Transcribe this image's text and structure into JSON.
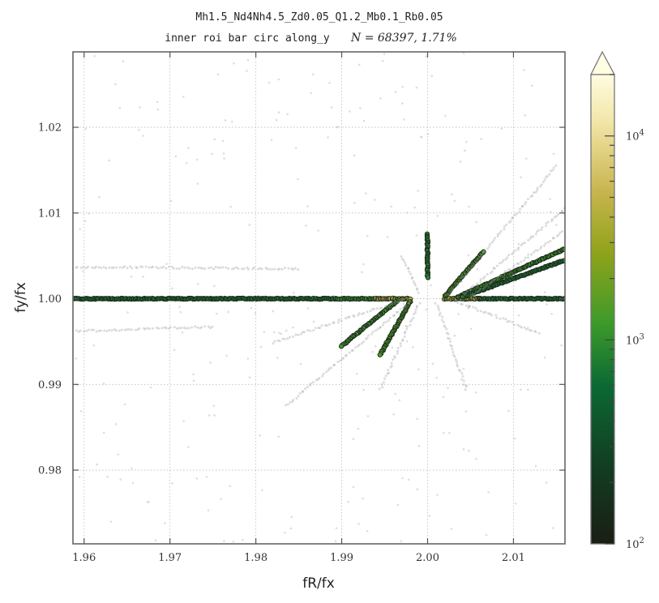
{
  "chart_data": {
    "type": "scatter",
    "title": "Mh1.5_Nd4Nh4.5_Zd0.05_Q1.2_Mb0.1_Rb0.05",
    "subtitle_text": "inner roi bar circ along_y",
    "subtitle_stats": "N = 68397,   1.71%",
    "xlabel": "fR/fx",
    "ylabel": "fy/fx",
    "xlim": [
      1.9587,
      2.016
    ],
    "ylim": [
      0.9714,
      1.0288
    ],
    "xticks": [
      {
        "value": 1.96,
        "label": "1.96"
      },
      {
        "value": 1.97,
        "label": "1.97"
      },
      {
        "value": 1.98,
        "label": "1.98"
      },
      {
        "value": 1.99,
        "label": "1.99"
      },
      {
        "value": 2.0,
        "label": "2.00"
      },
      {
        "value": 2.01,
        "label": "2.01"
      }
    ],
    "yticks": [
      {
        "value": 0.98,
        "label": "0.98"
      },
      {
        "value": 0.99,
        "label": "0.99"
      },
      {
        "value": 1.0,
        "label": "1.00"
      },
      {
        "value": 1.01,
        "label": "1.01"
      },
      {
        "value": 1.02,
        "label": "1.02"
      }
    ],
    "grid": true,
    "colorbar": {
      "scale": "log",
      "min": 100,
      "max": 20000,
      "extend": "max",
      "ticks": [
        {
          "value": 100,
          "base": "10",
          "exp": "2"
        },
        {
          "value": 1000,
          "base": "10",
          "exp": "3"
        },
        {
          "value": 10000,
          "base": "10",
          "exp": "4"
        }
      ],
      "colormap": [
        "#1a1e14",
        "#0c6a34",
        "#3d9a2a",
        "#8fa31a",
        "#c8b44e",
        "#f2e6a8",
        "#fffce0"
      ]
    },
    "segments": [
      {
        "from": [
          1.9587,
          1.0
        ],
        "to": [
          1.989,
          1.0
        ],
        "density": 300,
        "style": "dense"
      },
      {
        "from": [
          1.989,
          1.0
        ],
        "to": [
          1.994,
          1.0
        ],
        "density": 500,
        "style": "dense"
      },
      {
        "from": [
          1.994,
          1.0
        ],
        "to": [
          1.998,
          1.0
        ],
        "density": 3000,
        "style": "dense"
      },
      {
        "from": [
          2.002,
          1.0
        ],
        "to": [
          2.006,
          1.0
        ],
        "density": 2500,
        "style": "dense"
      },
      {
        "from": [
          2.006,
          1.0
        ],
        "to": [
          2.016,
          1.0
        ],
        "density": 300,
        "style": "dense"
      },
      {
        "from": [
          2.0,
          1.0075
        ],
        "to": [
          2.0,
          1.0025
        ],
        "density": 400,
        "style": "dense"
      },
      {
        "from": [
          2.002,
          1.0003
        ],
        "to": [
          2.0065,
          1.0055
        ],
        "density": 700,
        "style": "dense"
      },
      {
        "from": [
          2.0035,
          1.0002
        ],
        "to": [
          2.016,
          1.0058
        ],
        "density": 600,
        "style": "dense"
      },
      {
        "from": [
          2.004,
          1.0002
        ],
        "to": [
          2.016,
          1.0045
        ],
        "density": 300,
        "style": "dense"
      },
      {
        "from": [
          2.005,
          1.0002
        ],
        "to": [
          2.016,
          1.008
        ],
        "density": 150,
        "style": "faint"
      },
      {
        "from": [
          2.004,
          1.0003
        ],
        "to": [
          2.016,
          1.0105
        ],
        "density": 150,
        "style": "faint"
      },
      {
        "from": [
          2.0025,
          1.0005
        ],
        "to": [
          2.015,
          1.0155
        ],
        "density": 100,
        "style": "faint"
      },
      {
        "from": [
          1.998,
          0.9997
        ],
        "to": [
          1.9945,
          0.9935
        ],
        "density": 700,
        "style": "dense"
      },
      {
        "from": [
          1.9965,
          0.9998
        ],
        "to": [
          1.99,
          0.9945
        ],
        "density": 600,
        "style": "dense"
      },
      {
        "from": [
          1.997,
          0.9998
        ],
        "to": [
          1.982,
          0.9949
        ],
        "density": 200,
        "style": "faint"
      },
      {
        "from": [
          1.998,
          0.9997
        ],
        "to": [
          1.9835,
          0.9875
        ],
        "density": 100,
        "style": "faint"
      },
      {
        "from": [
          1.999,
          0.9995
        ],
        "to": [
          1.9945,
          0.9895
        ],
        "density": 100,
        "style": "faint"
      },
      {
        "from": [
          1.999,
          1.0007
        ],
        "to": [
          1.997,
          1.005
        ],
        "density": 80,
        "style": "faint"
      },
      {
        "from": [
          2.001,
          0.9995
        ],
        "to": [
          2.0045,
          0.9895
        ],
        "density": 80,
        "style": "faint"
      },
      {
        "from": [
          2.003,
          0.9998
        ],
        "to": [
          2.013,
          0.996
        ],
        "density": 80,
        "style": "faint"
      },
      {
        "from": [
          1.9587,
          0.9962
        ],
        "to": [
          1.975,
          0.9967
        ],
        "density": 150,
        "style": "faint"
      },
      {
        "from": [
          1.9587,
          1.0037
        ],
        "to": [
          1.985,
          1.0035
        ],
        "density": 100,
        "style": "faint"
      }
    ]
  }
}
